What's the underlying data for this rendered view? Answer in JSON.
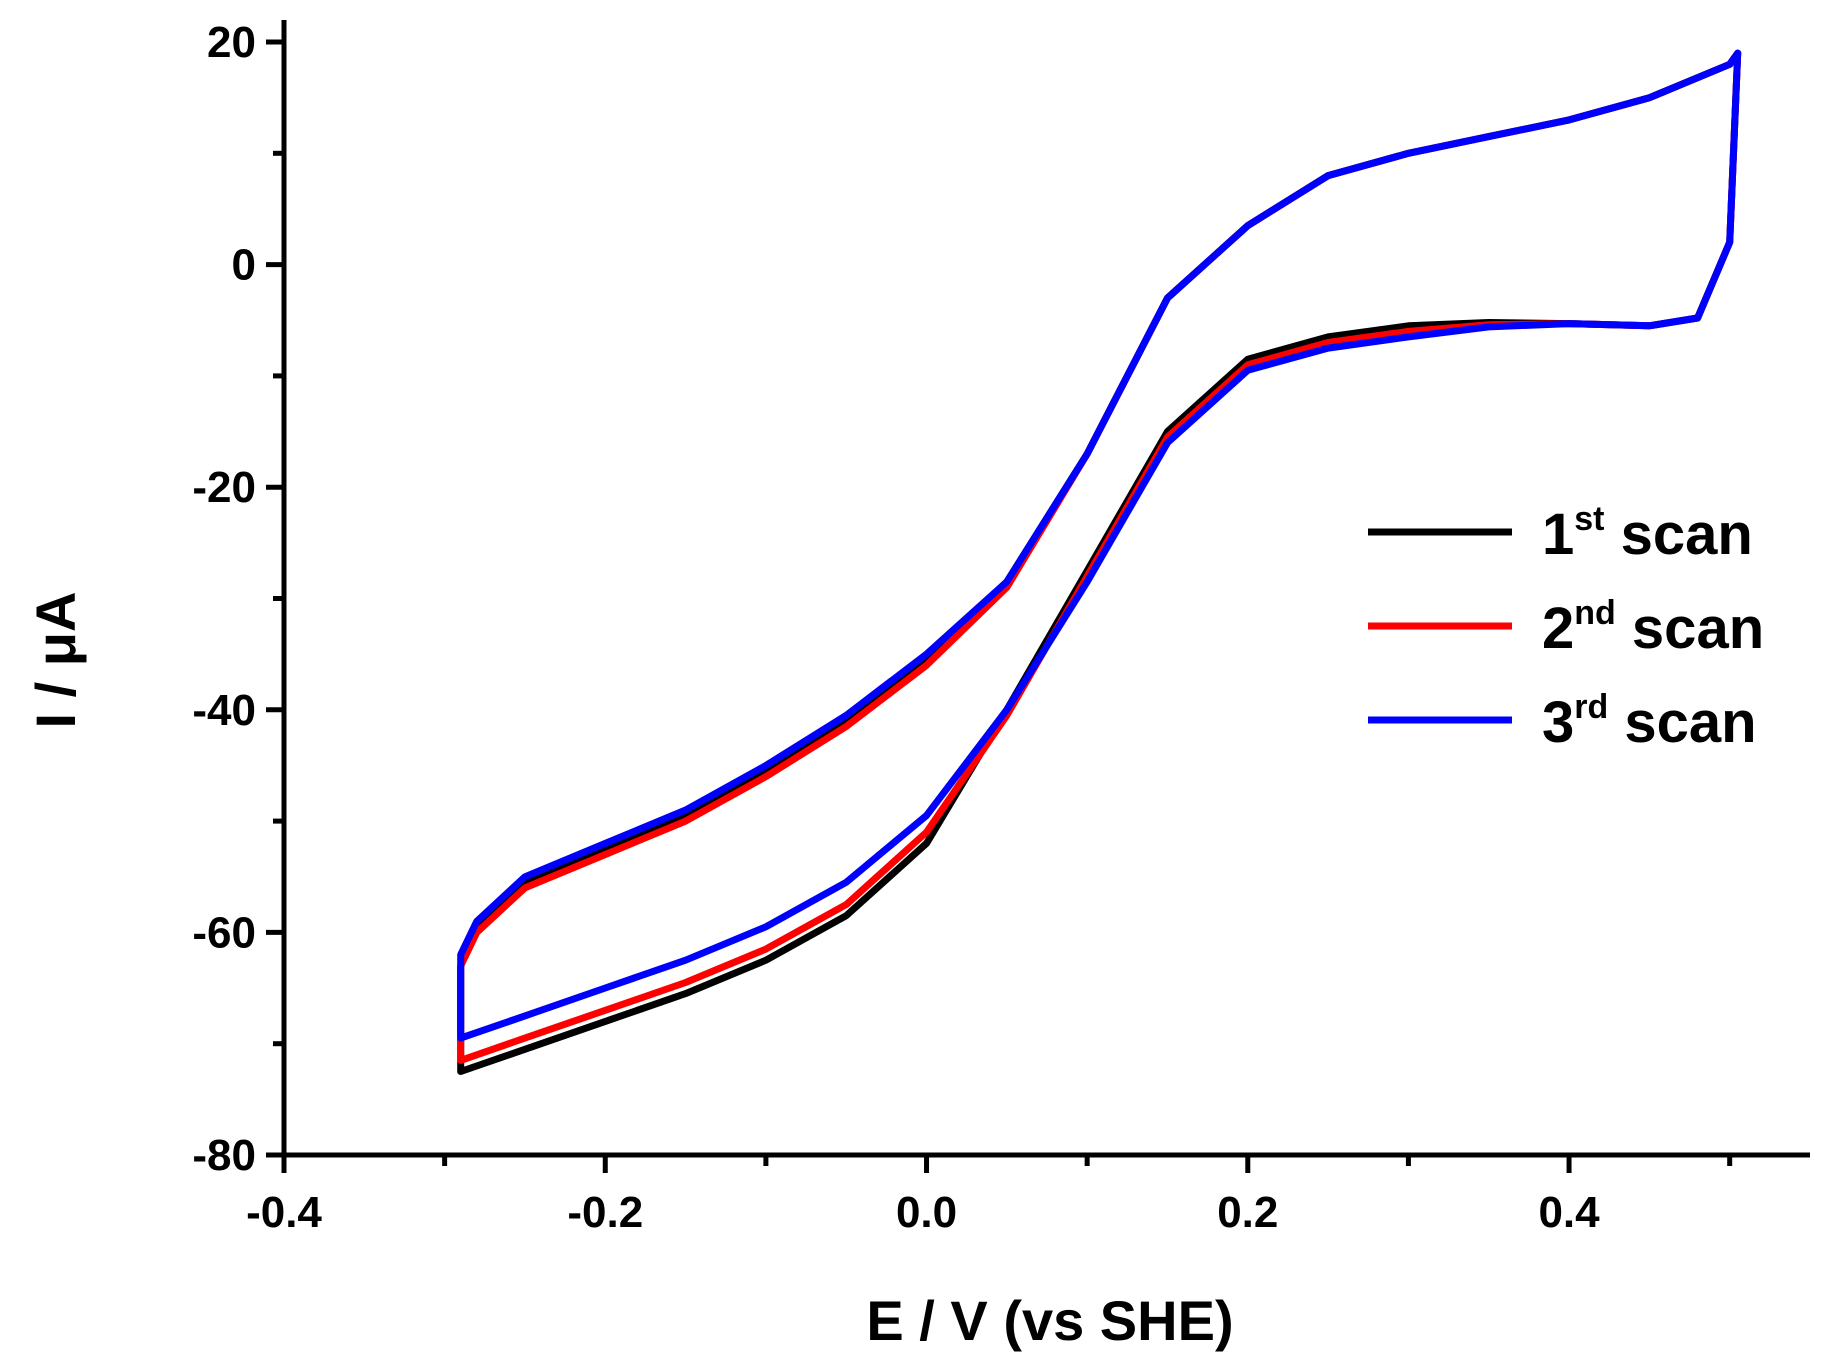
{
  "chart_data": {
    "type": "line",
    "title": "",
    "xlabel": "E / V (vs SHE)",
    "ylabel": "I / μA",
    "xlim": [
      -0.4,
      0.55
    ],
    "ylim": [
      -80,
      20
    ],
    "xticks": [
      -0.4,
      -0.2,
      0.0,
      0.2,
      0.4
    ],
    "xtick_labels": [
      "-0.4",
      "-0.2",
      "0.0",
      "0.2",
      "0.4"
    ],
    "yticks": [
      -80,
      -60,
      -40,
      -20,
      0,
      20
    ],
    "ytick_labels": [
      "-80",
      "-60",
      "-40",
      "-20",
      "0",
      "20"
    ],
    "grid": false,
    "legend_position": "right",
    "series": [
      {
        "name": "1st scan",
        "label_main": "1",
        "label_sup": "st",
        "label_rest": " scan",
        "color": "#000000",
        "x": [
          -0.29,
          -0.25,
          -0.2,
          -0.15,
          -0.1,
          -0.05,
          0.0,
          0.05,
          0.1,
          0.15,
          0.2,
          0.25,
          0.3,
          0.35,
          0.4,
          0.45,
          0.48,
          0.5,
          0.505,
          0.5,
          0.45,
          0.4,
          0.35,
          0.3,
          0.25,
          0.2,
          0.15,
          0.1,
          0.05,
          0.0,
          -0.05,
          -0.1,
          -0.15,
          -0.2,
          -0.25,
          -0.28,
          -0.29,
          -0.29
        ],
        "y": [
          -72.5,
          -70.5,
          -68.0,
          -65.5,
          -62.5,
          -58.5,
          -52.0,
          -40.0,
          -27.5,
          -15.0,
          -8.5,
          -6.5,
          -5.5,
          -5.2,
          -5.3,
          -5.5,
          -4.8,
          2.0,
          19.0,
          18.0,
          15.0,
          13.0,
          11.5,
          10.0,
          8.0,
          3.5,
          -3.0,
          -17.0,
          -28.5,
          -35.5,
          -41.0,
          -45.5,
          -49.5,
          -52.5,
          -55.5,
          -59.5,
          -63.0,
          -72.5
        ]
      },
      {
        "name": "2nd scan",
        "label_main": "2",
        "label_sup": "nd",
        "label_rest": " scan",
        "color": "#ff0000",
        "x": [
          -0.29,
          -0.25,
          -0.2,
          -0.15,
          -0.1,
          -0.05,
          0.0,
          0.05,
          0.1,
          0.15,
          0.2,
          0.25,
          0.3,
          0.35,
          0.4,
          0.45,
          0.48,
          0.5,
          0.505,
          0.5,
          0.45,
          0.4,
          0.35,
          0.3,
          0.25,
          0.2,
          0.15,
          0.1,
          0.05,
          0.0,
          -0.05,
          -0.1,
          -0.15,
          -0.2,
          -0.25,
          -0.28,
          -0.29,
          -0.29
        ],
        "y": [
          -71.5,
          -69.5,
          -67.0,
          -64.5,
          -61.5,
          -57.5,
          -51.0,
          -40.5,
          -28.0,
          -15.5,
          -9.0,
          -7.0,
          -6.0,
          -5.4,
          -5.3,
          -5.5,
          -4.8,
          2.0,
          19.0,
          18.0,
          15.0,
          13.0,
          11.5,
          10.0,
          8.0,
          3.5,
          -3.0,
          -17.0,
          -29.0,
          -36.0,
          -41.5,
          -46.0,
          -50.0,
          -53.0,
          -56.0,
          -60.0,
          -63.0,
          -71.5
        ]
      },
      {
        "name": "3rd scan",
        "label_main": "3",
        "label_sup": "rd",
        "label_rest": " scan",
        "color": "#0000ff",
        "x": [
          -0.29,
          -0.25,
          -0.2,
          -0.15,
          -0.1,
          -0.05,
          0.0,
          0.05,
          0.1,
          0.15,
          0.2,
          0.25,
          0.3,
          0.35,
          0.4,
          0.45,
          0.48,
          0.5,
          0.505,
          0.5,
          0.45,
          0.4,
          0.35,
          0.3,
          0.25,
          0.2,
          0.15,
          0.1,
          0.05,
          0.0,
          -0.05,
          -0.1,
          -0.15,
          -0.2,
          -0.25,
          -0.28,
          -0.29,
          -0.29
        ],
        "y": [
          -69.5,
          -67.5,
          -65.0,
          -62.5,
          -59.5,
          -55.5,
          -49.5,
          -40.0,
          -28.5,
          -16.0,
          -9.5,
          -7.5,
          -6.5,
          -5.6,
          -5.3,
          -5.5,
          -4.8,
          2.0,
          19.0,
          18.0,
          15.0,
          13.0,
          11.5,
          10.0,
          8.0,
          3.5,
          -3.0,
          -17.0,
          -28.5,
          -35.0,
          -40.5,
          -45.0,
          -49.0,
          -52.0,
          -55.0,
          -59.0,
          -62.0,
          -69.5
        ]
      }
    ]
  }
}
